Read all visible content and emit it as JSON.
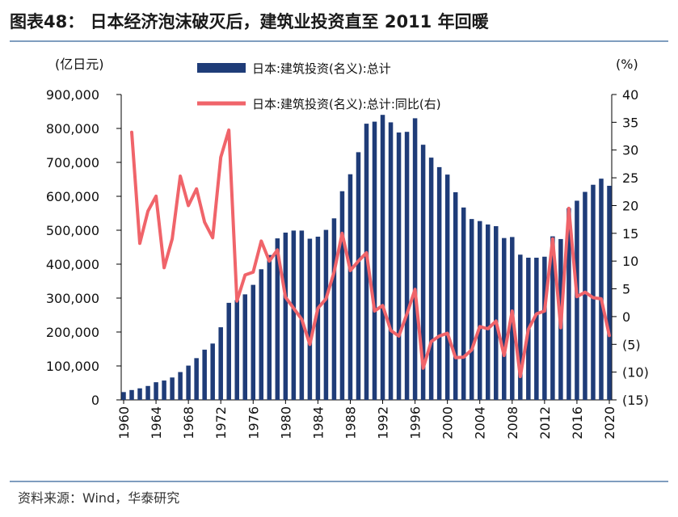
{
  "header": {
    "title_text": "图表48：   日本经济泡沫破灭后，建筑业投资直至 2011 年回暖"
  },
  "footer": {
    "source_text": "资料来源：Wind，华泰研究"
  },
  "colors": {
    "bar": "#1f3c78",
    "line": "#f0646a",
    "rule": "#7f9dbf"
  },
  "chart_data": {
    "type": "bar+line",
    "title": "日本经济泡沫破灭后，建筑业投资直至 2011 年回暖",
    "left_unit": "(亿日元)",
    "right_unit": "(%)",
    "x": [
      1960,
      1961,
      1962,
      1963,
      1964,
      1965,
      1966,
      1967,
      1968,
      1969,
      1970,
      1971,
      1972,
      1973,
      1974,
      1975,
      1976,
      1977,
      1978,
      1979,
      1980,
      1981,
      1982,
      1983,
      1984,
      1985,
      1986,
      1987,
      1988,
      1989,
      1990,
      1991,
      1992,
      1993,
      1994,
      1995,
      1996,
      1997,
      1998,
      1999,
      2000,
      2001,
      2002,
      2003,
      2004,
      2005,
      2006,
      2007,
      2008,
      2009,
      2010,
      2011,
      2012,
      2013,
      2014,
      2015,
      2016,
      2017,
      2018,
      2019,
      2020
    ],
    "x_tick_labels": [
      "1960",
      "1964",
      "1968",
      "1972",
      "1976",
      "1980",
      "1984",
      "1988",
      "1992",
      "1996",
      "2000",
      "2004",
      "2008",
      "2012",
      "2016",
      "2020"
    ],
    "series": [
      {
        "name": "日本:建筑投资(名义):总计",
        "axis": "left",
        "kind": "bar",
        "values": [
          23000,
          29000,
          34000,
          41000,
          52000,
          57000,
          66000,
          82000,
          101000,
          123000,
          148000,
          166000,
          214000,
          286000,
          294000,
          311000,
          339000,
          385000,
          427000,
          476000,
          493000,
          499000,
          499000,
          475000,
          481000,
          501000,
          535000,
          615000,
          665000,
          730000,
          814000,
          820000,
          840000,
          818000,
          788000,
          790000,
          830000,
          752000,
          714000,
          686000,
          664000,
          612000,
          567000,
          533000,
          527000,
          517000,
          512000,
          477000,
          480000,
          428000,
          419000,
          419000,
          422000,
          482000,
          474000,
          565000,
          587000,
          613000,
          634000,
          652000,
          631000
        ]
      },
      {
        "name": "日本:建筑投资(名义):总计:同比(右)",
        "axis": "right",
        "kind": "line",
        "values": [
          null,
          33.2,
          13.2,
          19.0,
          21.7,
          8.8,
          14.0,
          25.3,
          20.0,
          23.0,
          17.0,
          14.2,
          28.7,
          33.6,
          2.8,
          7.5,
          8.0,
          13.6,
          10.0,
          12.0,
          3.5,
          1.5,
          -0.5,
          -5.0,
          1.5,
          3.2,
          8.0,
          15.0,
          8.3,
          10.0,
          11.5,
          1.0,
          2.0,
          -2.5,
          -3.5,
          0.5,
          4.9,
          -9.3,
          -4.5,
          -3.5,
          -3.0,
          -7.4,
          -7.3,
          -6.0,
          -1.8,
          -2.2,
          -0.8,
          -7.0,
          1.0,
          -10.8,
          -2.3,
          0.5,
          1.0,
          14.0,
          -2.0,
          19.5,
          3.6,
          4.4,
          3.4,
          3.2,
          -3.4
        ]
      }
    ],
    "left_axis": {
      "min": 0,
      "max": 900000,
      "tick_labels": [
        "0",
        "100,000",
        "200,000",
        "300,000",
        "400,000",
        "500,000",
        "600,000",
        "700,000",
        "800,000",
        "900,000"
      ]
    },
    "right_axis": {
      "min": -15,
      "max": 40,
      "tick_labels": [
        "(15)",
        "(10)",
        "(5)",
        "0",
        "5",
        "10",
        "15",
        "20",
        "25",
        "30",
        "35",
        "40"
      ]
    },
    "legend": [
      "日本:建筑投资(名义):总计",
      "日本:建筑投资(名义):总计:同比(右)"
    ],
    "legend_position": "top-center",
    "grid": false
  }
}
